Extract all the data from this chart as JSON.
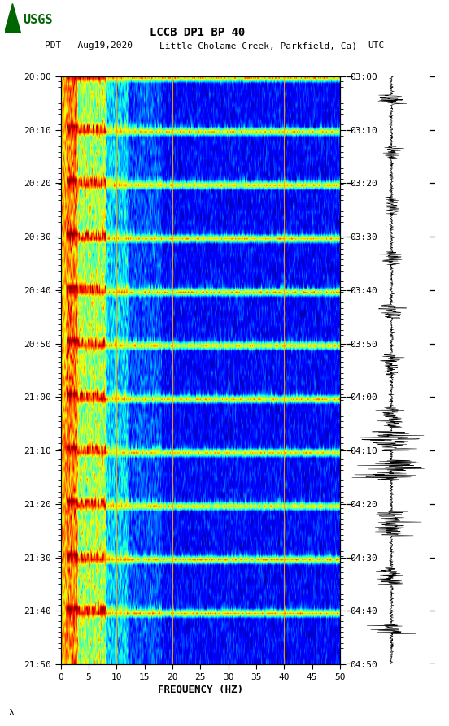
{
  "title_line1": "LCCB DP1 BP 40",
  "title_line2_left": "PDT   Aug19,2020",
  "title_line2_mid": "Little Cholame Creek, Parkfield, Ca)",
  "title_line2_right": "UTC",
  "xlabel": "FREQUENCY (HZ)",
  "freq_min": 0,
  "freq_max": 50,
  "freq_ticks": [
    0,
    5,
    10,
    15,
    20,
    25,
    30,
    35,
    40,
    45,
    50
  ],
  "left_time_labels": [
    "20:00",
    "20:10",
    "20:20",
    "20:30",
    "20:40",
    "20:50",
    "21:00",
    "21:10",
    "21:20",
    "21:30",
    "21:40",
    "21:50"
  ],
  "right_time_labels": [
    "03:00",
    "03:10",
    "03:20",
    "03:30",
    "03:40",
    "03:50",
    "04:00",
    "04:10",
    "04:20",
    "04:30",
    "04:40",
    "04:50"
  ],
  "vertical_line_freqs": [
    10,
    20,
    30,
    40
  ],
  "vertical_line_color": "#ffa500",
  "background_color": "#ffffff",
  "spectrogram_cmap": "jet",
  "logo_color": "#006400",
  "bright_band_rows": [
    0,
    10,
    20,
    30,
    40,
    50,
    60,
    70,
    80,
    90,
    100,
    110
  ]
}
